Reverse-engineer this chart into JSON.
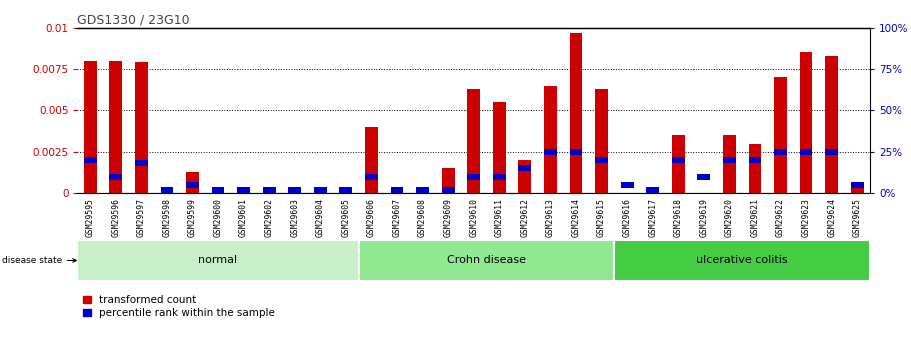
{
  "title": "GDS1330 / 23G10",
  "samples": [
    "GSM29595",
    "GSM29596",
    "GSM29597",
    "GSM29598",
    "GSM29599",
    "GSM29600",
    "GSM29601",
    "GSM29602",
    "GSM29603",
    "GSM29604",
    "GSM29605",
    "GSM29606",
    "GSM29607",
    "GSM29608",
    "GSM29609",
    "GSM29610",
    "GSM29611",
    "GSM29612",
    "GSM29613",
    "GSM29614",
    "GSM29615",
    "GSM29616",
    "GSM29617",
    "GSM29618",
    "GSM29619",
    "GSM29620",
    "GSM29621",
    "GSM29622",
    "GSM29623",
    "GSM29624",
    "GSM29625"
  ],
  "transformed_count": [
    0.008,
    0.008,
    0.0079,
    0.0,
    0.0013,
    0.0,
    0.0,
    0.0,
    0.0,
    0.0,
    0.0,
    0.004,
    0.0,
    0.0,
    0.0015,
    0.0063,
    0.0055,
    0.002,
    0.0065,
    0.0097,
    0.0063,
    0.0,
    0.0,
    0.0035,
    0.0,
    0.0035,
    0.003,
    0.007,
    0.0085,
    0.0083,
    0.0004
  ],
  "percentile_rank_pct": [
    20,
    10,
    18,
    0,
    5,
    0,
    0,
    0,
    0,
    0,
    0,
    10,
    0,
    0,
    0,
    10,
    10,
    15,
    25,
    25,
    20,
    5,
    0,
    20,
    10,
    20,
    20,
    25,
    25,
    25,
    5
  ],
  "groups": [
    {
      "label": "normal",
      "start": 0,
      "end": 10,
      "color": "#c8f0c8"
    },
    {
      "label": "Crohn disease",
      "start": 11,
      "end": 20,
      "color": "#90e890"
    },
    {
      "label": "ulcerative colitis",
      "start": 21,
      "end": 30,
      "color": "#44cc44"
    }
  ],
  "ylim_left": [
    0,
    0.01
  ],
  "ylim_right": [
    0,
    100
  ],
  "yticks_left": [
    0,
    0.0025,
    0.005,
    0.0075,
    0.01
  ],
  "ytick_labels_left": [
    "0",
    "0.0025",
    "0.005",
    "0.0075",
    "0.01"
  ],
  "yticks_right": [
    0,
    25,
    50,
    75,
    100
  ],
  "bar_color_red": "#cc0000",
  "bar_color_blue": "#0000cc",
  "left_axis_color": "#cc0000",
  "right_axis_color": "#0000cc",
  "bar_width": 0.5,
  "background_color": "#ffffff",
  "plot_bg_color": "#ffffff"
}
